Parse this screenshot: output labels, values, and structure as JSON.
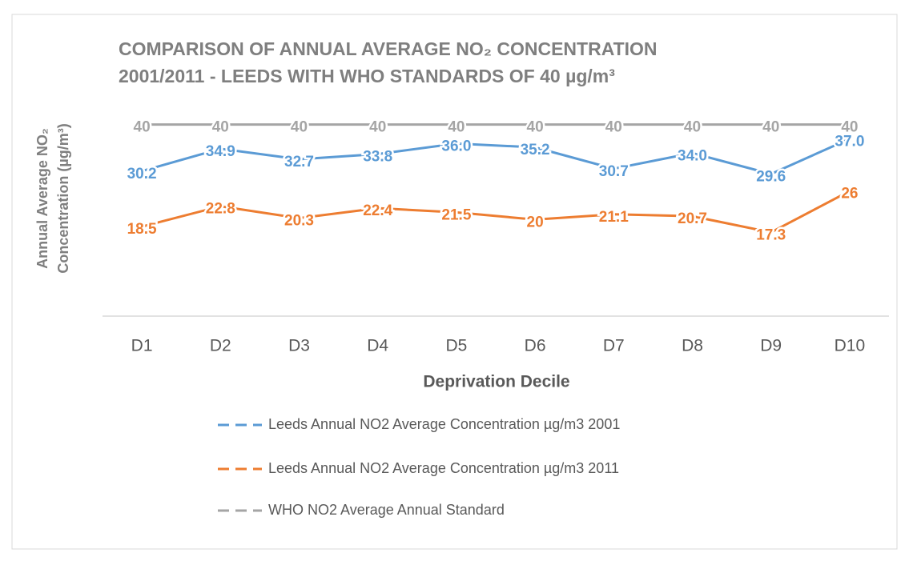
{
  "chart_data": {
    "type": "line",
    "title": [
      "COMPARISON OF ANNUAL AVERAGE NO₂ CONCENTRATION",
      "2001/2011 - LEEDS WITH WHO STANDARDS OF 40 µg/m³"
    ],
    "y_label": [
      "Annual Average NO₂",
      "Concentration (µg/m³)"
    ],
    "x_label": "Deprivation Decile",
    "categories": [
      "D1",
      "D2",
      "D3",
      "D4",
      "D5",
      "D6",
      "D7",
      "D8",
      "D9",
      "D10"
    ],
    "ylim": [
      0,
      45
    ],
    "series": [
      {
        "name": "Leeds Annual NO2 Average Concentration µg/m3 2001",
        "color": "#5b9bd5",
        "values": [
          30.2,
          34.9,
          32.7,
          33.8,
          36.0,
          35.2,
          30.7,
          34.0,
          29.6,
          37.0
        ],
        "value_labels": [
          "30.2",
          "34.9",
          "32.7",
          "33.8",
          "36.0",
          "35.2",
          "30.7",
          "34.0",
          "29.6",
          "37.0"
        ]
      },
      {
        "name": "Leeds Annual NO2 Average Concentration µg/m3 2011",
        "color": "#ed7d31",
        "values": [
          18.5,
          22.8,
          20.3,
          22.4,
          21.5,
          20,
          21.1,
          20.7,
          17.3,
          26
        ]
      },
      {
        "name": "WHO NO2 Average Annual Standard",
        "color": "#a5a5a5",
        "values": [
          40,
          40,
          40,
          40,
          40,
          40,
          40,
          40,
          40,
          40
        ]
      }
    ],
    "legend": "bottom"
  }
}
